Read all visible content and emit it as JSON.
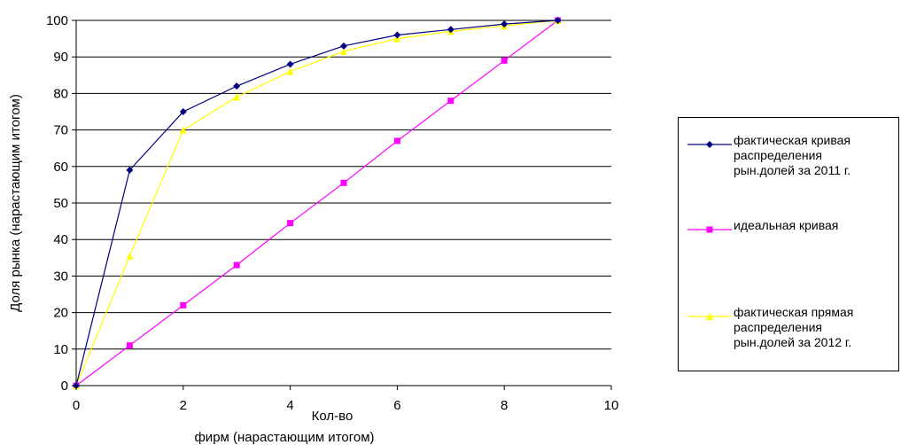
{
  "chart_data": {
    "type": "line",
    "title": "",
    "xlabel": "Кол-во\nфирм (нарастающим итогом)",
    "ylabel": "Доля рынка (нарастающим итогом)",
    "xlim": [
      0,
      10
    ],
    "ylim": [
      0,
      100
    ],
    "x_ticks": [
      0,
      2,
      4,
      6,
      8,
      10
    ],
    "y_ticks": [
      0,
      10,
      20,
      30,
      40,
      50,
      60,
      70,
      80,
      90,
      100
    ],
    "grid": "horizontal",
    "legend_position": "right",
    "series": [
      {
        "name": "фактическая кривая распределения рын.долей за 2011 г.",
        "color": "#000080",
        "marker": "diamond",
        "x": [
          0,
          1,
          2,
          3,
          4,
          5,
          6,
          7,
          8,
          9
        ],
        "values": [
          0,
          59,
          75,
          82,
          88,
          93,
          96,
          97.5,
          99,
          100
        ]
      },
      {
        "name": "идеальная кривая",
        "color": "#FF00FF",
        "marker": "square",
        "x": [
          0,
          1,
          2,
          3,
          4,
          5,
          6,
          7,
          8,
          9
        ],
        "values": [
          0,
          11,
          22,
          33,
          44.5,
          55.5,
          67,
          78,
          89,
          100
        ]
      },
      {
        "name": "фактическая прямая распределения рын.долей за 2012 г.",
        "color": "#FFFF00",
        "marker": "triangle",
        "x": [
          0,
          1,
          2,
          3,
          4,
          5,
          6,
          7,
          8,
          9
        ],
        "values": [
          0,
          35.5,
          70,
          79,
          86,
          91.5,
          95,
          97,
          98.5,
          100
        ]
      }
    ]
  },
  "legend": {
    "entries": [
      "фактическая кривая\nраспределения\nрын.долей за 2011 г.",
      "идеальная кривая",
      "фактическая прямая\nраспределения\nрын.долей за 2012 г."
    ]
  }
}
